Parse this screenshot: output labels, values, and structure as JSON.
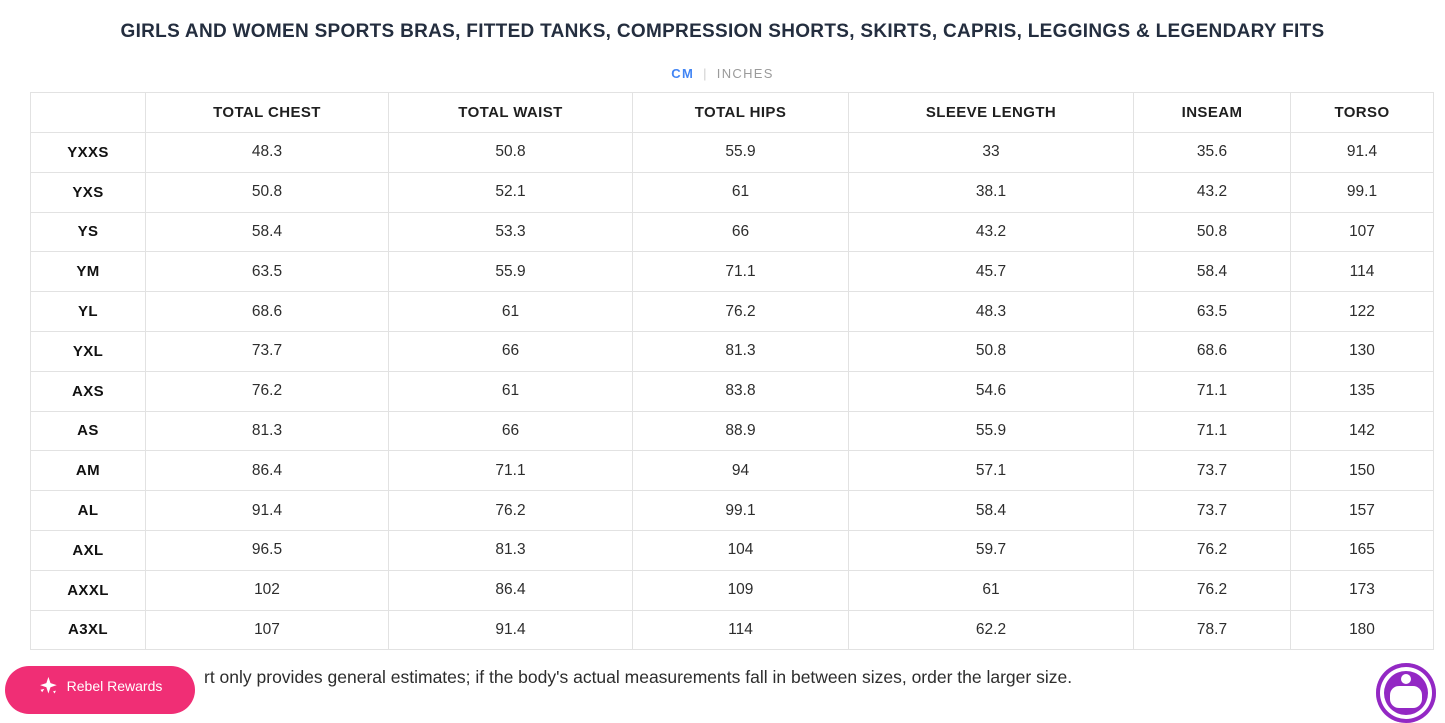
{
  "title": "GIRLS AND WOMEN SPORTS BRAS, FITTED TANKS, COMPRESSION SHORTS, SKIRTS, CAPRIS, LEGGINGS & LEGENDARY FITS",
  "unit_toggle": {
    "cm_label": "CM",
    "divider": "|",
    "inches_label": "INCHES",
    "active_unit": "CM",
    "active_color": "#4285F4",
    "inactive_color": "#9B9B9B"
  },
  "table": {
    "columns": [
      "",
      "TOTAL CHEST",
      "TOTAL WAIST",
      "TOTAL HIPS",
      "SLEEVE LENGTH",
      "INSEAM",
      "TORSO"
    ],
    "rows": [
      {
        "size": "YXXS",
        "values": [
          "48.3",
          "50.8",
          "55.9",
          "33",
          "35.6",
          "91.4"
        ]
      },
      {
        "size": "YXS",
        "values": [
          "50.8",
          "52.1",
          "61",
          "38.1",
          "43.2",
          "99.1"
        ]
      },
      {
        "size": "YS",
        "values": [
          "58.4",
          "53.3",
          "66",
          "43.2",
          "50.8",
          "107"
        ]
      },
      {
        "size": "YM",
        "values": [
          "63.5",
          "55.9",
          "71.1",
          "45.7",
          "58.4",
          "114"
        ]
      },
      {
        "size": "YL",
        "values": [
          "68.6",
          "61",
          "76.2",
          "48.3",
          "63.5",
          "122"
        ]
      },
      {
        "size": "YXL",
        "values": [
          "73.7",
          "66",
          "81.3",
          "50.8",
          "68.6",
          "130"
        ]
      },
      {
        "size": "AXS",
        "values": [
          "76.2",
          "61",
          "83.8",
          "54.6",
          "71.1",
          "135"
        ]
      },
      {
        "size": "AS",
        "values": [
          "81.3",
          "66",
          "88.9",
          "55.9",
          "71.1",
          "142"
        ]
      },
      {
        "size": "AM",
        "values": [
          "86.4",
          "71.1",
          "94",
          "57.1",
          "73.7",
          "150"
        ]
      },
      {
        "size": "AL",
        "values": [
          "91.4",
          "76.2",
          "99.1",
          "58.4",
          "73.7",
          "157"
        ]
      },
      {
        "size": "AXL",
        "values": [
          "96.5",
          "81.3",
          "104",
          "59.7",
          "76.2",
          "165"
        ]
      },
      {
        "size": "AXXL",
        "values": [
          "102",
          "86.4",
          "109",
          "61",
          "76.2",
          "173"
        ]
      },
      {
        "size": "A3XL",
        "values": [
          "107",
          "91.4",
          "114",
          "62.2",
          "78.7",
          "180"
        ]
      }
    ]
  },
  "note": "rt only provides general estimates; if the body's actual measurements fall in between sizes, order the larger size.",
  "rewards_button": {
    "label": "Rebel Rewards",
    "background_color": "#F02E75",
    "icon": "sparkle-star-icon"
  },
  "accessibility_widget": {
    "icon": "accessibility-person-icon",
    "background_color": "#9328C4"
  }
}
